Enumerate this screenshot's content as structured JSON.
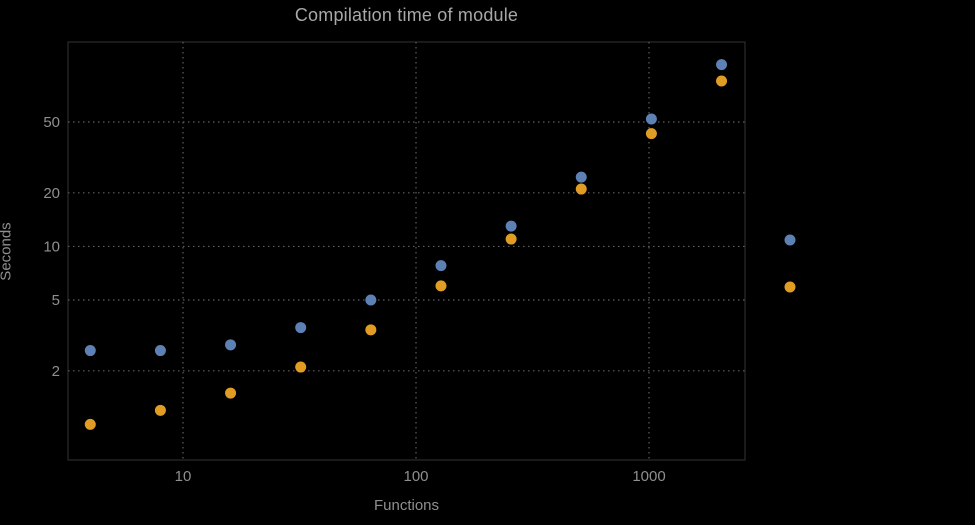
{
  "chart_data": {
    "type": "scatter",
    "title": "Compilation time of module",
    "xlabel": "Functions",
    "ylabel": "Seconds",
    "x_scale": "log",
    "y_scale": "log",
    "grid": true,
    "grid_style": "dotted",
    "x_ticks": [
      10,
      100,
      1000
    ],
    "y_ticks": [
      2,
      5,
      10,
      20,
      50
    ],
    "x_range": [
      3.2,
      2600
    ],
    "y_range": [
      0.63,
      140
    ],
    "background_color": "#000000",
    "grid_color": "#5f5f5f",
    "tick_label_color": "#8f8f8f",
    "title_color": "#a8a8a8",
    "series": [
      {
        "name": "series-blue",
        "color": "#5E81B5",
        "x": [
          4,
          8,
          16,
          32,
          64,
          128,
          256,
          512,
          1024,
          2048
        ],
        "y": [
          2.6,
          2.6,
          2.8,
          3.5,
          5.0,
          7.8,
          13,
          24.5,
          52,
          105
        ]
      },
      {
        "name": "series-orange",
        "color": "#E19C24",
        "x": [
          4,
          8,
          16,
          32,
          64,
          128,
          256,
          512,
          1024,
          2048
        ],
        "y": [
          1.0,
          1.2,
          1.5,
          2.1,
          3.4,
          6.0,
          11,
          21,
          43,
          85
        ]
      }
    ],
    "legend": {
      "position": "right-outside",
      "markers": [
        {
          "name": "legend-marker-blue",
          "color": "#5E81B5"
        },
        {
          "name": "legend-marker-orange",
          "color": "#E19C24"
        }
      ]
    }
  }
}
